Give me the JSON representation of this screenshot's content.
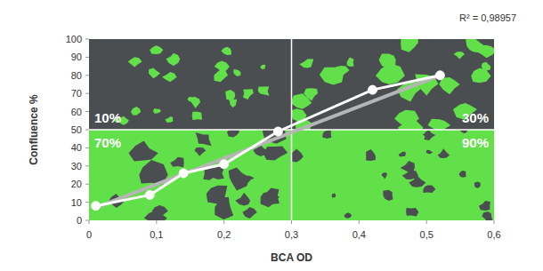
{
  "chart_data": {
    "type": "line",
    "annotation": "R² = 0,98957",
    "x_label": "BCA OD",
    "y_label": "Confluence %",
    "xlim": [
      0,
      0.6
    ],
    "xticks": [
      0,
      {
        "value": 0.1,
        "label": "0,1"
      },
      {
        "value": 0.2,
        "label": "0,2"
      },
      {
        "value": 0.3,
        "label": "0,3"
      },
      {
        "value": 0.4,
        "label": "0,4"
      },
      {
        "value": 0.5,
        "label": "0,5"
      },
      {
        "value": 0.6,
        "label": "0,6"
      }
    ],
    "ylim": [
      0,
      100
    ],
    "yticks": [
      0,
      10,
      20,
      30,
      40,
      50,
      60,
      70,
      80,
      90,
      100
    ],
    "grid": false,
    "panels": [
      {
        "label": "10%",
        "value": 10
      },
      {
        "label": "30%",
        "value": 30
      },
      {
        "label": "70%",
        "value": 70
      },
      {
        "label": "90%",
        "value": 90
      }
    ],
    "series": [
      {
        "color": "#b5b5b5",
        "marker": "none",
        "line_style": "solid",
        "x": [
          0.01,
          0.52
        ],
        "values": [
          7,
          80
        ]
      },
      {
        "color": "#ffffff",
        "marker": "circle",
        "line_style": "solid",
        "x": [
          0.01,
          0.09,
          0.14,
          0.2,
          0.28,
          0.42,
          0.52
        ],
        "values": [
          8,
          14,
          26,
          31,
          49,
          72,
          80
        ]
      }
    ]
  }
}
